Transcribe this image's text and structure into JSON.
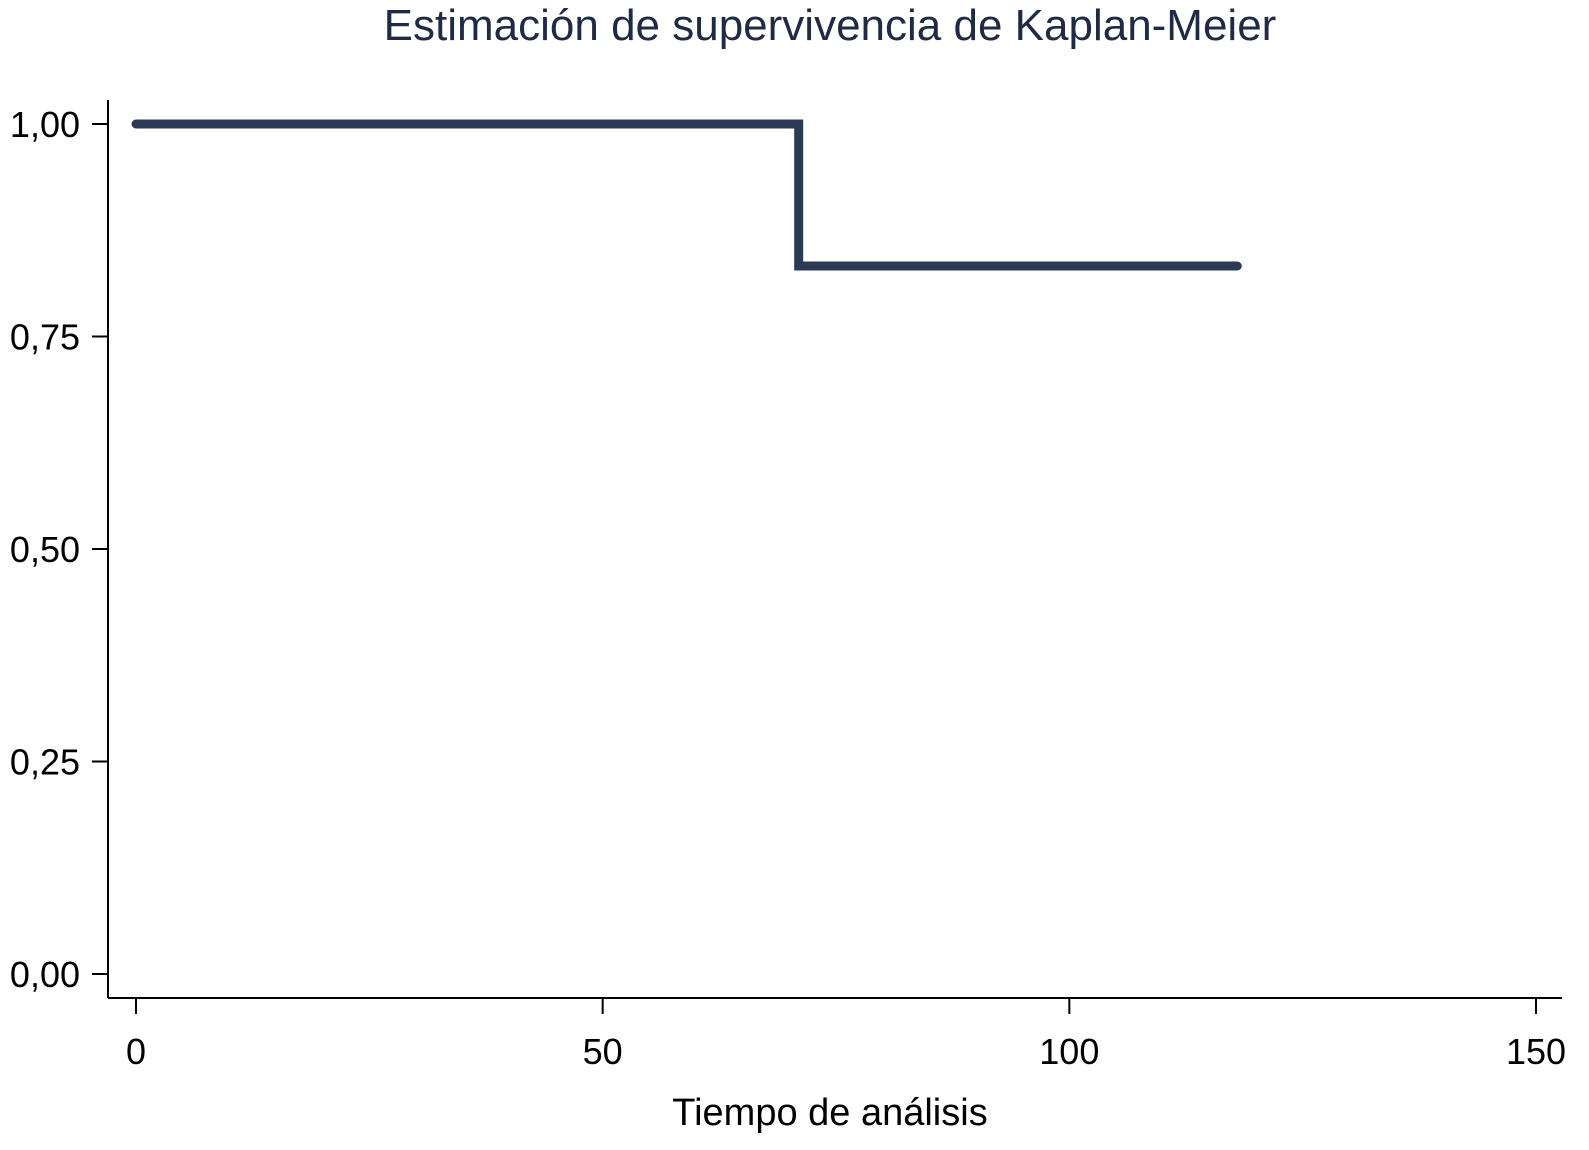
{
  "chart_data": {
    "type": "line",
    "step": true,
    "title": "Estimación de supervivencia de Kaplan-Meier",
    "xlabel": "Tiempo de análisis",
    "ylabel": "",
    "xlim": [
      0,
      150
    ],
    "ylim": [
      0,
      1
    ],
    "x_ticks": [
      0,
      50,
      100,
      150
    ],
    "x_tick_labels": [
      "0",
      "50",
      "100",
      "150"
    ],
    "y_ticks": [
      0,
      0.25,
      0.5,
      0.75,
      1
    ],
    "y_tick_labels": [
      "0,00",
      "0,25",
      "0,50",
      "0,75",
      "1,00"
    ],
    "grid": false,
    "legend": "none",
    "series": [
      {
        "color": "#2d3a55",
        "x": [
          0,
          71,
          71,
          118
        ],
        "y": [
          1.0,
          1.0,
          0.833,
          0.833
        ]
      }
    ]
  }
}
